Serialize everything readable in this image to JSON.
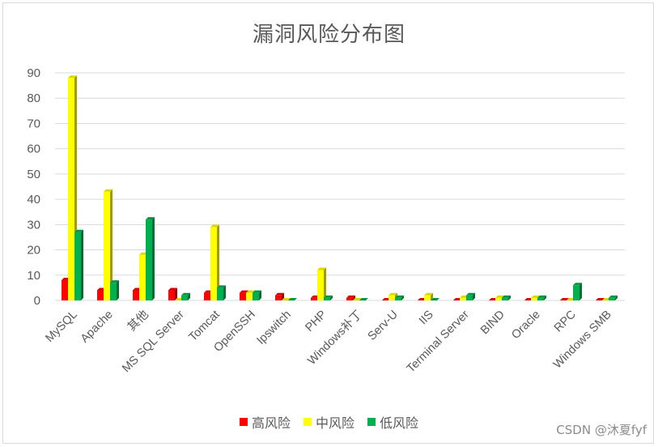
{
  "chart_data": {
    "type": "bar",
    "title": "漏洞风险分布图",
    "categories": [
      "MySQL",
      "Apache",
      "其他",
      "MS SQL Server",
      "Tomcat",
      "OpenSSH",
      "Ipswitch",
      "PHP",
      "Windows补丁",
      "Serv-U",
      "IIS",
      "Terminal Server",
      "BIND",
      "Oracle",
      "RPC",
      "Windows SMB"
    ],
    "series": [
      {
        "name": "高风险",
        "color": "#ff0000",
        "values": [
          8,
          4,
          4,
          4,
          3,
          3,
          2,
          1,
          1,
          0,
          0,
          0,
          0,
          0,
          0,
          0
        ]
      },
      {
        "name": "中风险",
        "color": "#ffff00",
        "values": [
          88,
          43,
          18,
          0,
          29,
          3,
          0,
          12,
          0,
          2,
          2,
          1,
          1,
          1,
          0,
          0
        ]
      },
      {
        "name": "低风险",
        "color": "#00b050",
        "values": [
          27,
          7,
          32,
          2,
          5,
          3,
          0,
          1,
          0,
          1,
          0,
          2,
          1,
          1,
          6,
          1
        ]
      }
    ],
    "y_ticks": [
      "0",
      "10",
      "20",
      "30",
      "40",
      "50",
      "60",
      "70",
      "80",
      "90"
    ],
    "ylim": [
      0,
      90
    ],
    "grid": true,
    "legend_position": "bottom"
  },
  "watermark": "CSDN @沐夏fyf"
}
